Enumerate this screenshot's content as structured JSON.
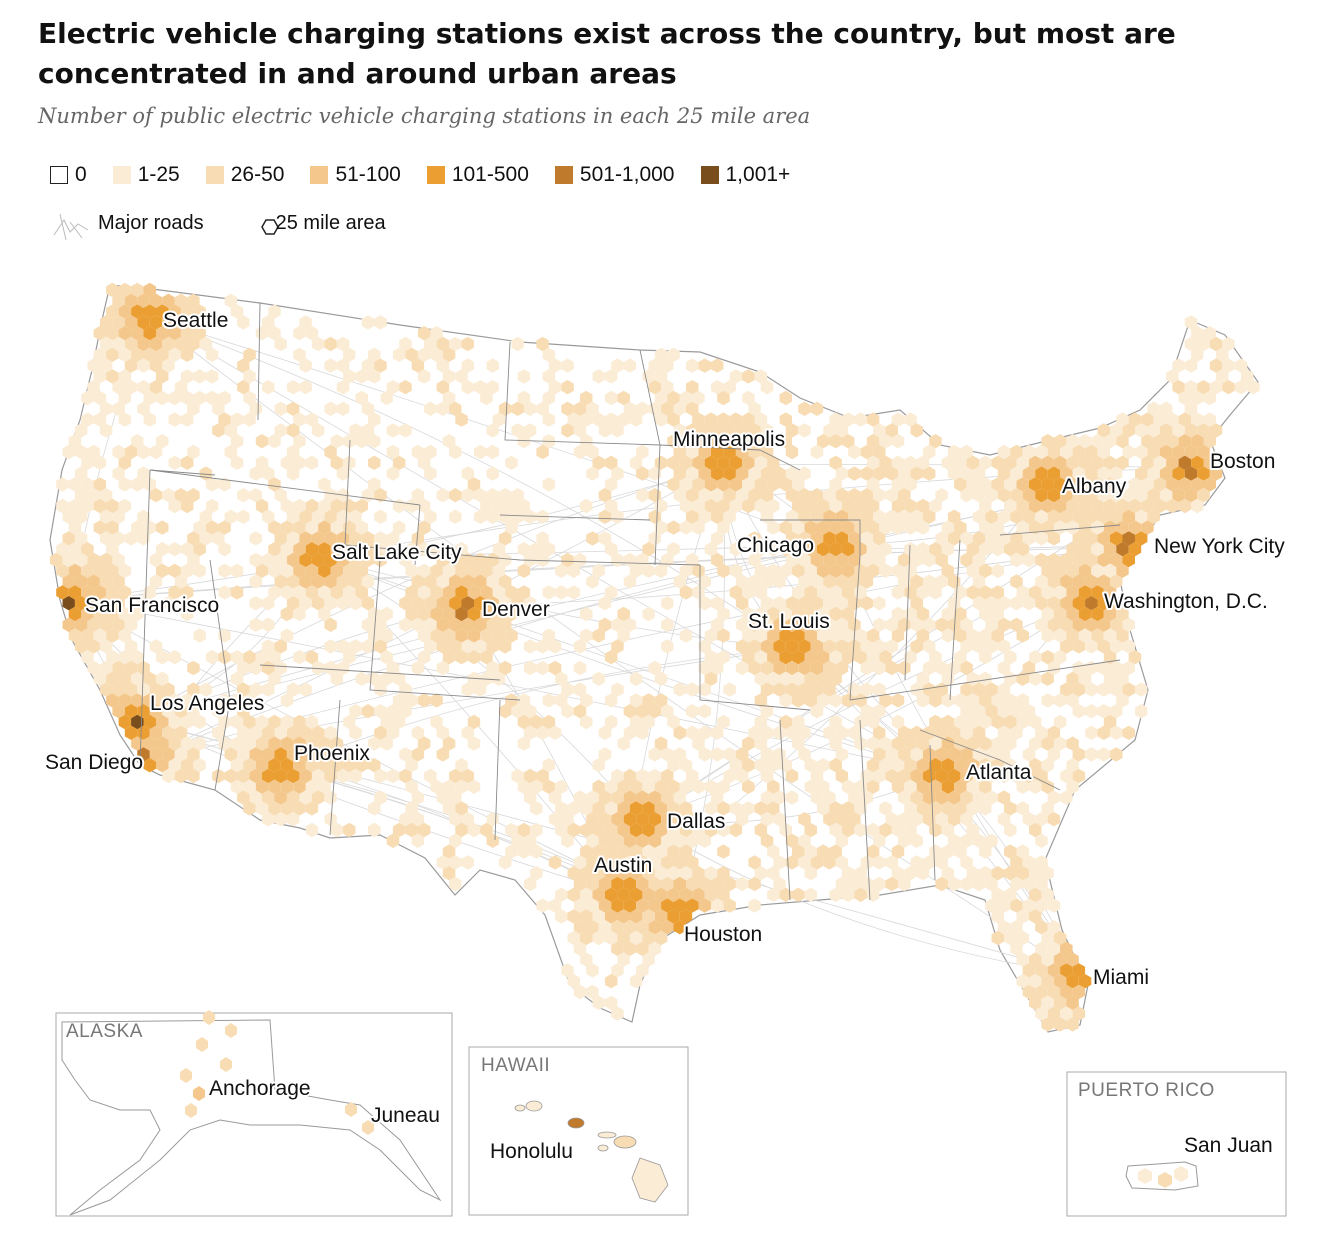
{
  "title": "Electric vehicle charging stations exist across the country, but most are concentrated in and around urban areas",
  "subtitle": "Number of public electric vehicle charging stations in each 25 mile area",
  "legend": {
    "bins": [
      {
        "label": "0",
        "color": "#ffffff"
      },
      {
        "label": "1-25",
        "color": "#fbecd6"
      },
      {
        "label": "26-50",
        "color": "#f8dcb3"
      },
      {
        "label": "51-100",
        "color": "#f4c88d"
      },
      {
        "label": "101-500",
        "color": "#eb9f33"
      },
      {
        "label": "501-1,000",
        "color": "#bf7a2b"
      },
      {
        "label": "1,001+",
        "color": "#7a4d1d"
      }
    ],
    "roads_label": "Major roads",
    "hex_label": "25 mile area"
  },
  "cities": [
    {
      "name": "Seattle",
      "bin": 4
    },
    {
      "name": "San Francisco",
      "bin": 6
    },
    {
      "name": "Los Angeles",
      "bin": 6
    },
    {
      "name": "San Diego",
      "bin": 5
    },
    {
      "name": "Salt Lake City",
      "bin": 4
    },
    {
      "name": "Denver",
      "bin": 5
    },
    {
      "name": "Phoenix",
      "bin": 4
    },
    {
      "name": "Minneapolis",
      "bin": 4
    },
    {
      "name": "Chicago",
      "bin": 4
    },
    {
      "name": "St. Louis",
      "bin": 4
    },
    {
      "name": "Dallas",
      "bin": 4
    },
    {
      "name": "Austin",
      "bin": 4
    },
    {
      "name": "Houston",
      "bin": 4
    },
    {
      "name": "Atlanta",
      "bin": 4
    },
    {
      "name": "Miami",
      "bin": 4
    },
    {
      "name": "Boston",
      "bin": 5
    },
    {
      "name": "Albany",
      "bin": 4
    },
    {
      "name": "New York City",
      "bin": 5
    },
    {
      "name": "Washington, D.C.",
      "bin": 5
    }
  ],
  "insets": {
    "alaska": {
      "title": "ALASKA",
      "cities": [
        "Anchorage",
        "Juneau"
      ]
    },
    "hawaii": {
      "title": "HAWAII",
      "cities": [
        "Honolulu"
      ]
    },
    "puerto_rico": {
      "title": "PUERTO RICO",
      "cities": [
        "San Juan"
      ]
    }
  }
}
